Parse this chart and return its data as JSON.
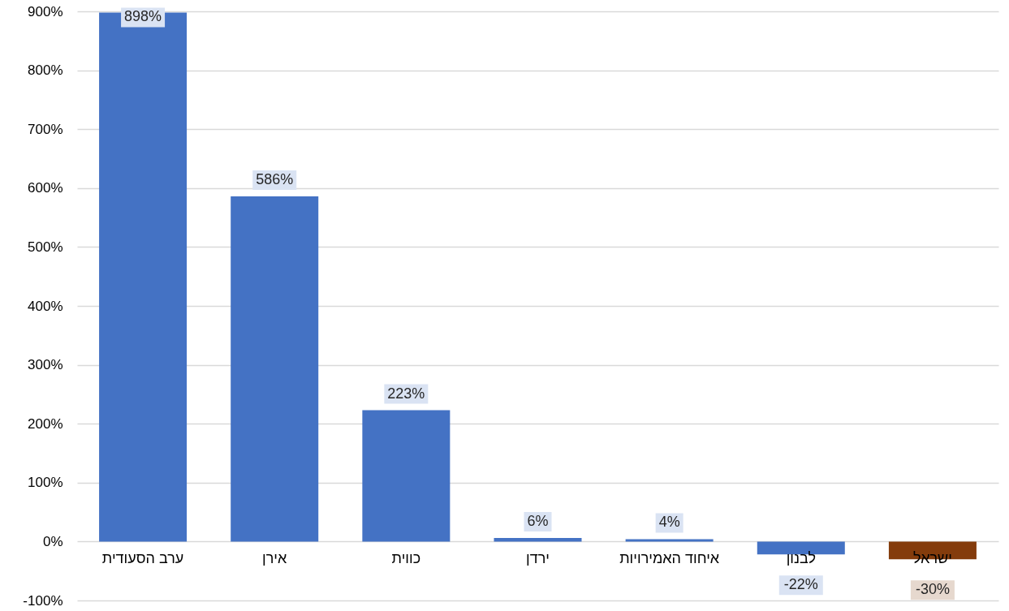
{
  "chart_data": {
    "type": "bar",
    "categories": [
      "ערב הסעודית",
      "אירן",
      "כווית",
      "ירדן",
      "איחוד האמירויות",
      "לבנון",
      "ישראל"
    ],
    "values": [
      898,
      586,
      223,
      6,
      4,
      -22,
      -30
    ],
    "colors": [
      "#4472c4",
      "#4472c4",
      "#4472c4",
      "#4472c4",
      "#4472c4",
      "#4472c4",
      "#843c0c"
    ],
    "value_labels": [
      "898%",
      "586%",
      "223%",
      "6%",
      "4%",
      "-22%",
      "-30%"
    ],
    "ylim": [
      -100,
      900
    ],
    "yticks": [
      {
        "value": -100,
        "label": "-100%"
      },
      {
        "value": 0,
        "label": "0%"
      },
      {
        "value": 100,
        "label": "100%"
      },
      {
        "value": 200,
        "label": "200%"
      },
      {
        "value": 300,
        "label": "300%"
      },
      {
        "value": 400,
        "label": "400%"
      },
      {
        "value": 500,
        "label": "500%"
      },
      {
        "value": 600,
        "label": "600%"
      },
      {
        "value": 700,
        "label": "700%"
      },
      {
        "value": 800,
        "label": "800%"
      },
      {
        "value": 900,
        "label": "900%"
      }
    ],
    "grid": "y"
  }
}
